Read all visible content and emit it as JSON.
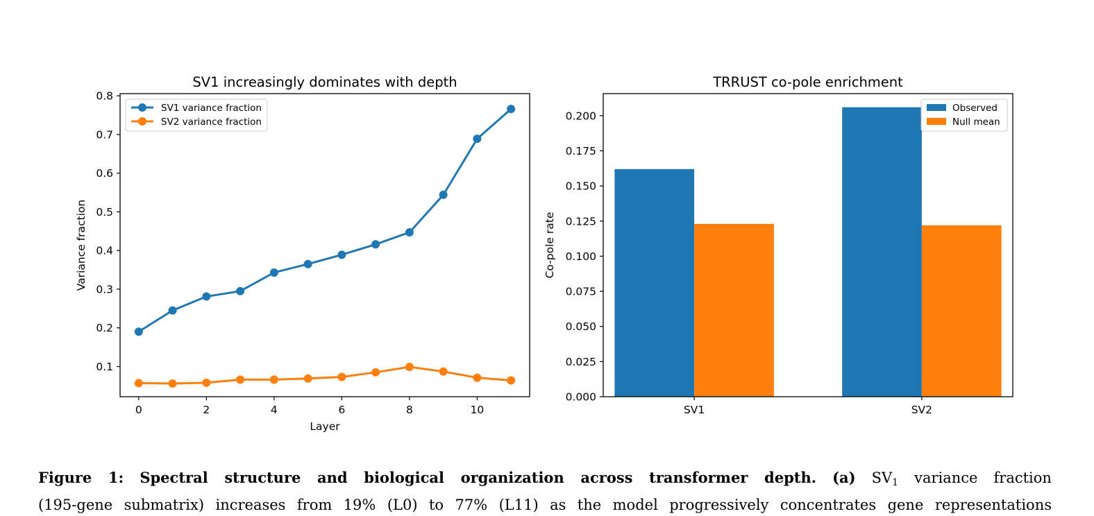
{
  "chart_data": [
    {
      "type": "line",
      "title": "SV1 increasingly dominates with depth",
      "xlabel": "Layer",
      "ylabel": "Variance fraction",
      "xlim": [
        -0.55,
        11.55
      ],
      "ylim": [
        0.0219,
        0.8057
      ],
      "x_ticks": [
        0,
        2,
        4,
        6,
        8,
        10
      ],
      "y_ticks": [
        0.1,
        0.2,
        0.3,
        0.4,
        0.5,
        0.6,
        0.7,
        0.8
      ],
      "legend_position": "upper-left",
      "x": [
        0,
        1,
        2,
        3,
        4,
        5,
        6,
        7,
        8,
        9,
        10,
        11
      ],
      "series": [
        {
          "name": "SV1 variance fraction",
          "color": "#1f77b4",
          "values": [
            0.19,
            0.245,
            0.281,
            0.295,
            0.343,
            0.365,
            0.389,
            0.416,
            0.447,
            0.544,
            0.689,
            0.766
          ]
        },
        {
          "name": "SV2 variance fraction",
          "color": "#ff7f0e",
          "values": [
            0.057,
            0.056,
            0.058,
            0.066,
            0.066,
            0.069,
            0.073,
            0.085,
            0.099,
            0.087,
            0.071,
            0.064
          ]
        }
      ]
    },
    {
      "type": "bar",
      "title": "TRRUST co-pole enrichment",
      "xlabel": "",
      "ylabel": "Co-pole rate",
      "ylim": [
        0,
        0.2157
      ],
      "y_ticks": [
        0.0,
        0.025,
        0.05,
        0.075,
        0.1,
        0.125,
        0.15,
        0.175,
        0.2
      ],
      "y_tick_labels": [
        "0.000",
        "0.025",
        "0.050",
        "0.075",
        "0.100",
        "0.125",
        "0.150",
        "0.175",
        "0.200"
      ],
      "legend_position": "upper-right",
      "categories": [
        "SV1",
        "SV2"
      ],
      "series": [
        {
          "name": "Observed",
          "color": "#1f77b4",
          "values": [
            0.162,
            0.206
          ]
        },
        {
          "name": "Null mean",
          "color": "#ff7f0e",
          "values": [
            0.123,
            0.122
          ]
        }
      ]
    }
  ],
  "caption": {
    "label": "Figure 1:",
    "title": "Spectral structure and biological organization across transformer depth.",
    "panel": "(a)",
    "sv_symbol": "SV",
    "sv_subscript": "1",
    "line1_rest": "variance fraction",
    "line2": "(195-gene submatrix) increases from 19% (L0) to 77% (L11) as the model progressively concentrates gene representations"
  }
}
